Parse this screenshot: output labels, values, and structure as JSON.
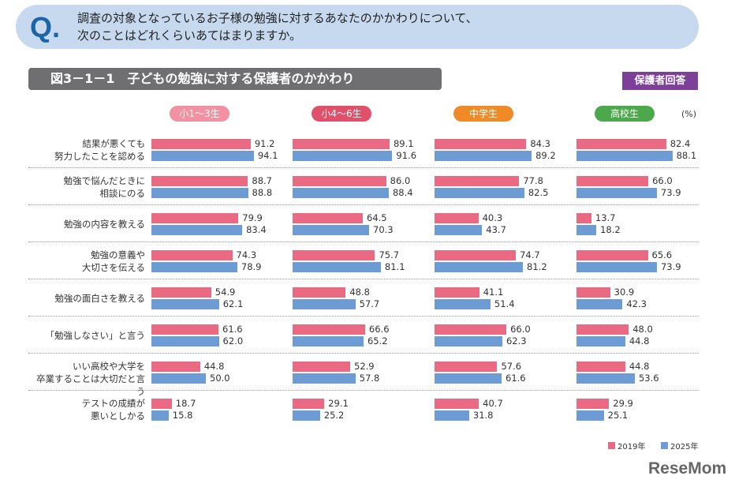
{
  "question": {
    "mark": "Q.",
    "line1": "調査の対象となっているお子様の勉強に対するあなたのかかわりについて、",
    "line2": "次のことはどれくらいあてはまりますか。"
  },
  "figure_title": "図3－1－1　子どもの勉強に対する保護者のかかわり",
  "badge": "保護者回答",
  "unit": "(%)",
  "logo": "ReseMom",
  "colors": {
    "2019": "#e96a82",
    "2025": "#6c9cd3",
    "g1": "#f191a2",
    "g2": "#e0506b",
    "g3": "#f08a26",
    "g4": "#4ba84b"
  },
  "chart_data": {
    "type": "bar",
    "orientation": "horizontal",
    "xlim": [
      0,
      100
    ],
    "groups": [
      "小1～3生",
      "小4～6生",
      "中学生",
      "高校生"
    ],
    "categories": [
      "結果が悪くても\n努力したことを認める",
      "勉強で悩んだときに\n相談にのる",
      "勉強の内容を教える",
      "勉強の意義や\n大切さを伝える",
      "勉強の面白さを教える",
      "「勉強しなさい」と言う",
      "いい高校や大学を\n卒業することは大切だと言う",
      "テストの成績が\n悪いとしかる"
    ],
    "series": [
      {
        "name": "2019年",
        "values": [
          [
            91.2,
            88.7,
            79.9,
            74.3,
            54.9,
            61.6,
            44.8,
            18.7
          ],
          [
            89.1,
            86.0,
            64.5,
            75.7,
            48.8,
            66.6,
            52.9,
            29.1
          ],
          [
            84.3,
            77.8,
            40.3,
            74.7,
            41.1,
            66.0,
            57.6,
            40.7
          ],
          [
            82.4,
            66.0,
            13.7,
            65.6,
            30.9,
            48.0,
            44.8,
            29.9
          ]
        ]
      },
      {
        "name": "2025年",
        "values": [
          [
            94.1,
            88.8,
            83.4,
            78.9,
            62.1,
            62.0,
            50.0,
            15.8
          ],
          [
            91.6,
            88.4,
            70.3,
            81.1,
            57.7,
            65.2,
            57.8,
            25.2
          ],
          [
            89.2,
            82.5,
            43.7,
            81.2,
            51.4,
            62.3,
            61.6,
            31.8
          ],
          [
            88.1,
            73.9,
            18.2,
            73.9,
            42.3,
            44.8,
            53.6,
            25.1
          ]
        ]
      }
    ],
    "legend": "bottom-right"
  }
}
